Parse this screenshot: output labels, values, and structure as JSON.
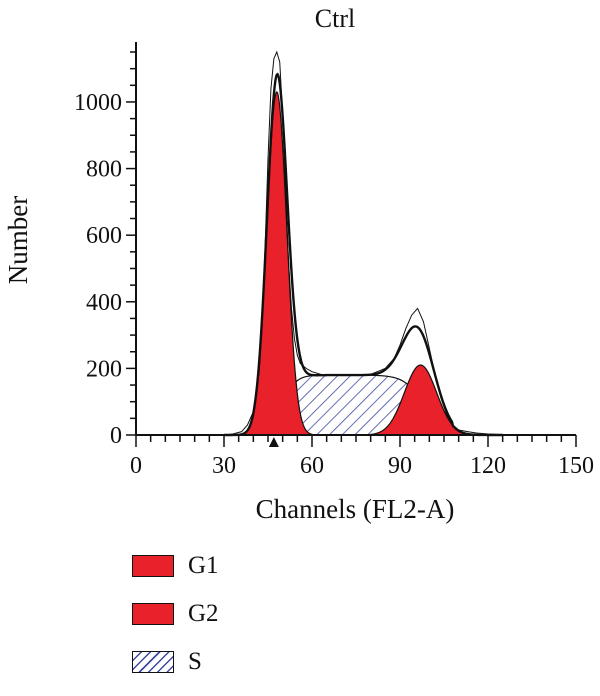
{
  "colors": {
    "g1": "#e8212a",
    "g2": "#e8212a",
    "s_hatch": "#3b4aa0",
    "outline": "#111111"
  },
  "chart_data": {
    "type": "area",
    "title": "Ctrl",
    "xlabel": "Channels (FL2-A)",
    "ylabel": "Number",
    "xlim": [
      0,
      150
    ],
    "ylim": [
      0,
      1150
    ],
    "xticks": [
      0,
      30,
      60,
      90,
      120,
      150
    ],
    "yticks": [
      0,
      200,
      400,
      600,
      800,
      1000
    ],
    "marker": {
      "x": 47,
      "shape": "triangle"
    },
    "legend": [
      {
        "name": "G1",
        "fill": "solid-red"
      },
      {
        "name": "G2",
        "fill": "solid-red"
      },
      {
        "name": "S",
        "fill": "hatched"
      }
    ],
    "series": [
      {
        "name": "G1",
        "peak_x": 48,
        "peak_y": 1030,
        "sigma": 3.4
      },
      {
        "name": "G2",
        "peak_x": 97,
        "peak_y": 210,
        "sigma": 5.5
      },
      {
        "name": "S",
        "start_x": 40,
        "end_x": 108,
        "plateau_y": 180
      }
    ],
    "histogram": {
      "x": [
        30,
        33,
        36,
        38,
        40,
        42,
        43,
        44,
        45,
        46,
        47,
        48,
        49,
        50,
        51,
        52,
        53,
        54,
        55,
        56,
        58,
        60,
        63,
        66,
        70,
        75,
        80,
        85,
        88,
        90,
        92,
        94,
        96,
        97,
        98,
        100,
        102,
        104,
        106,
        108,
        110,
        113,
        116,
        120,
        125,
        130
      ],
      "y": [
        0,
        3,
        10,
        30,
        70,
        190,
        330,
        560,
        830,
        1040,
        1130,
        1150,
        1120,
        960,
        740,
        520,
        380,
        290,
        240,
        215,
        200,
        190,
        182,
        180,
        180,
        180,
        182,
        200,
        230,
        270,
        320,
        360,
        380,
        360,
        340,
        260,
        180,
        110,
        60,
        30,
        15,
        10,
        6,
        3,
        1,
        0
      ]
    }
  }
}
